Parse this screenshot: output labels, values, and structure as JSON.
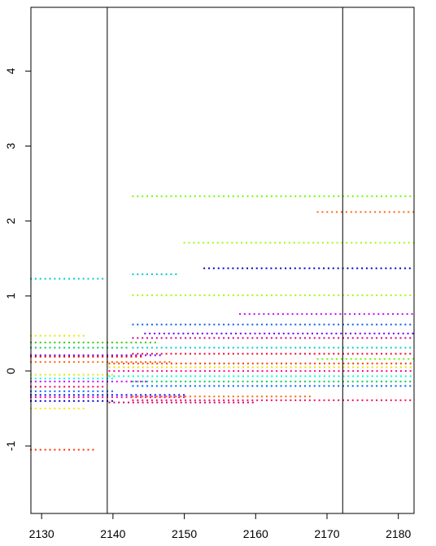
{
  "chart_data": {
    "type": "scatter",
    "title": "",
    "xlabel": "",
    "ylabel": "",
    "xlim": [
      2128.5,
      2182.2
    ],
    "ylim": [
      -1.9,
      4.85
    ],
    "x_ticks": [
      2130,
      2140,
      2150,
      2160,
      2170,
      2180
    ],
    "y_ticks": [
      -1,
      0,
      1,
      2,
      3,
      4
    ],
    "x_tick_labels": [
      "2130",
      "2140",
      "2150",
      "2160",
      "2170",
      "2180"
    ],
    "y_tick_labels": [
      "-1",
      "0",
      "1",
      "2",
      "3",
      "4"
    ],
    "vlines": [
      2139.2,
      2172.2
    ],
    "grid": false,
    "legend": false,
    "x_step": 0.67,
    "series": [
      {
        "color": "#00CCCC",
        "x_from": 2128.5,
        "x_to": 2138.9,
        "y": 1.23
      },
      {
        "color": "#E6E600",
        "x_from": 2128.5,
        "x_to": 2136.2,
        "y": 0.47
      },
      {
        "color": "#33CC00",
        "x_from": 2128.5,
        "x_to": 2146.3,
        "y": 0.38
      },
      {
        "color": "#00CC66",
        "x_from": 2128.5,
        "x_to": 2142.1,
        "y": 0.31
      },
      {
        "color": "#6600FF",
        "x_from": 2128.5,
        "x_to": 2147.1,
        "y": 0.21
      },
      {
        "color": "#FF0000",
        "x_from": 2128.5,
        "x_to": 2144.0,
        "y": 0.19
      },
      {
        "color": "#FF6600",
        "x_from": 2128.5,
        "x_to": 2148.0,
        "y": 0.12
      },
      {
        "color": "#E6E600",
        "x_from": 2128.5,
        "x_to": 2140.0,
        "y": -0.05
      },
      {
        "color": "#CC00FF",
        "x_from": 2128.5,
        "x_to": 2145.0,
        "y": -0.14
      },
      {
        "color": "#00FFFF",
        "x_from": 2128.5,
        "x_to": 2140.0,
        "y": -0.1
      },
      {
        "color": "#FF0066",
        "x_from": 2128.5,
        "x_to": 2139.0,
        "y": -0.21
      },
      {
        "color": "#0066FF",
        "x_from": 2128.5,
        "x_to": 2140.0,
        "y": -0.27
      },
      {
        "color": "#0000FF",
        "x_from": 2128.5,
        "x_to": 2150.0,
        "y": -0.32
      },
      {
        "color": "#FF0099",
        "x_from": 2128.5,
        "x_to": 2150.0,
        "y": -0.35
      },
      {
        "color": "#0000CC",
        "x_from": 2128.5,
        "x_to": 2140.0,
        "y": -0.4
      },
      {
        "color": "#FFE600",
        "x_from": 2128.5,
        "x_to": 2136.5,
        "y": -0.5
      },
      {
        "color": "#FF3300",
        "x_from": 2128.5,
        "x_to": 2137.7,
        "y": -1.05
      },
      {
        "color": "#66FF00",
        "x_from": 2142.8,
        "x_to": 2182.2,
        "y": 2.33
      },
      {
        "color": "#FF6600",
        "x_from": 2168.7,
        "x_to": 2182.2,
        "y": 2.12
      },
      {
        "color": "#99FF00",
        "x_from": 2150.0,
        "x_to": 2182.2,
        "y": 1.71
      },
      {
        "color": "#0000CC",
        "x_from": 2152.8,
        "x_to": 2182.2,
        "y": 1.37
      },
      {
        "color": "#00CCCC",
        "x_from": 2142.8,
        "x_to": 2149.0,
        "y": 1.29
      },
      {
        "color": "#99FF00",
        "x_from": 2142.8,
        "x_to": 2182.2,
        "y": 1.01
      },
      {
        "color": "#CC00FF",
        "x_from": 2157.8,
        "x_to": 2182.2,
        "y": 0.76
      },
      {
        "color": "#0066FF",
        "x_from": 2142.8,
        "x_to": 2182.2,
        "y": 0.62
      },
      {
        "color": "#6600FF",
        "x_from": 2144.5,
        "x_to": 2182.2,
        "y": 0.5
      },
      {
        "color": "#CC0099",
        "x_from": 2142.8,
        "x_to": 2182.2,
        "y": 0.44
      },
      {
        "color": "#00CCCC",
        "x_from": 2142.8,
        "x_to": 2182.2,
        "y": 0.31
      },
      {
        "color": "#FF0033",
        "x_from": 2142.8,
        "x_to": 2182.2,
        "y": 0.23
      },
      {
        "color": "#66FF00",
        "x_from": 2168.7,
        "x_to": 2182.2,
        "y": 0.16
      },
      {
        "color": "#FF3300",
        "x_from": 2139.5,
        "x_to": 2182.2,
        "y": 0.1
      },
      {
        "color": "#E6E600",
        "x_from": 2139.5,
        "x_to": 2182.2,
        "y": 0.05
      },
      {
        "color": "#FF0099",
        "x_from": 2139.5,
        "x_to": 2182.2,
        "y": 0.0
      },
      {
        "color": "#00FFCC",
        "x_from": 2139.5,
        "x_to": 2182.2,
        "y": -0.07
      },
      {
        "color": "#00CC66",
        "x_from": 2142.8,
        "x_to": 2182.2,
        "y": -0.14
      },
      {
        "color": "#0066FF",
        "x_from": 2142.8,
        "x_to": 2182.2,
        "y": -0.2
      },
      {
        "color": "#FF6600",
        "x_from": 2142.8,
        "x_to": 2168.0,
        "y": -0.34
      },
      {
        "color": "#FF0066",
        "x_from": 2142.8,
        "x_to": 2182.2,
        "y": -0.39
      },
      {
        "color": "#CC0066",
        "x_from": 2139.5,
        "x_to": 2160.0,
        "y": -0.42
      }
    ]
  }
}
